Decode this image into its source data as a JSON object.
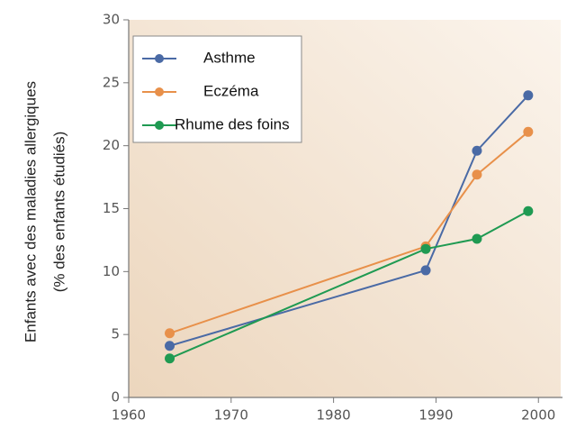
{
  "chart_data": {
    "type": "line",
    "ylabel": [
      "Enfants avec des maladies allergiques",
      "(% des enfants étudiés)"
    ],
    "series": [
      {
        "name": "Asthme",
        "color": "#4a6aa5",
        "x": [
          1964,
          1989,
          1994,
          1999
        ],
        "values": [
          4.1,
          10.1,
          19.6,
          24.0
        ]
      },
      {
        "name": "Eczéma",
        "color": "#e8904a",
        "x": [
          1964,
          1989,
          1994,
          1999
        ],
        "values": [
          5.1,
          12.0,
          17.7,
          21.1
        ]
      },
      {
        "name": "Rhume des foins",
        "color": "#1f9a52",
        "x": [
          1964,
          1989,
          1994,
          1999
        ],
        "values": [
          3.1,
          11.8,
          12.6,
          14.8
        ]
      }
    ],
    "xlim": [
      1960,
      2002
    ],
    "xticks": [
      1960,
      1970,
      1980,
      1990,
      2000
    ],
    "ylim": [
      0,
      30
    ],
    "yticks": [
      0,
      5,
      10,
      15,
      20,
      25,
      30
    ],
    "legend": "upper left"
  }
}
